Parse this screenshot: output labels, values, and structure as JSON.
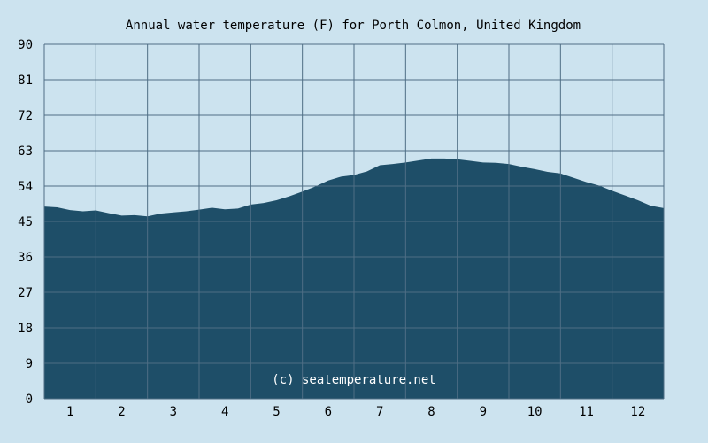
{
  "chart_data": {
    "type": "area",
    "title": "Annual water temperature (F) for Porth Colmon, United Kingdom",
    "xlabel": "",
    "ylabel": "",
    "x_ticks": [
      "1",
      "2",
      "3",
      "4",
      "5",
      "6",
      "7",
      "8",
      "9",
      "10",
      "11",
      "12"
    ],
    "y_ticks": [
      0,
      9,
      18,
      27,
      36,
      45,
      54,
      63,
      72,
      81,
      90
    ],
    "ylim": [
      0,
      90
    ],
    "xlim": [
      0.5,
      12.5
    ],
    "grid": true,
    "credit": "(c) seatemperature.net",
    "colors": {
      "background": "#cce3ef",
      "fill": "#1e4e68",
      "grid": "#4f6e85"
    },
    "series": [
      {
        "x": [
          0.5,
          0.75,
          1.0,
          1.25,
          1.5,
          1.75,
          2.0,
          2.25,
          2.5,
          2.75,
          3.0,
          3.25,
          3.5,
          3.75,
          4.0,
          4.25,
          4.5,
          4.75,
          5.0,
          5.25,
          5.5,
          5.75,
          6.0,
          6.25,
          6.5,
          6.75,
          7.0,
          7.25,
          7.5,
          7.75,
          8.0,
          8.25,
          8.5,
          8.75,
          9.0,
          9.25,
          9.5,
          9.75,
          10.0,
          10.25,
          10.5,
          10.75,
          11.0,
          11.25,
          11.5,
          11.75,
          12.0,
          12.25,
          12.5
        ],
        "values": [
          48.8,
          48.6,
          47.9,
          47.6,
          47.8,
          47.1,
          46.5,
          46.6,
          46.3,
          47.0,
          47.3,
          47.6,
          48.0,
          48.5,
          48.1,
          48.3,
          49.3,
          49.7,
          50.4,
          51.4,
          52.6,
          53.9,
          55.4,
          56.4,
          56.8,
          57.7,
          59.3,
          59.6,
          60.0,
          60.5,
          61.0,
          61.0,
          60.8,
          60.4,
          60.0,
          59.9,
          59.6,
          58.9,
          58.3,
          57.6,
          57.2,
          56.1,
          55.0,
          54.1,
          52.8,
          51.6,
          50.4,
          49.0,
          48.4
        ]
      }
    ]
  }
}
